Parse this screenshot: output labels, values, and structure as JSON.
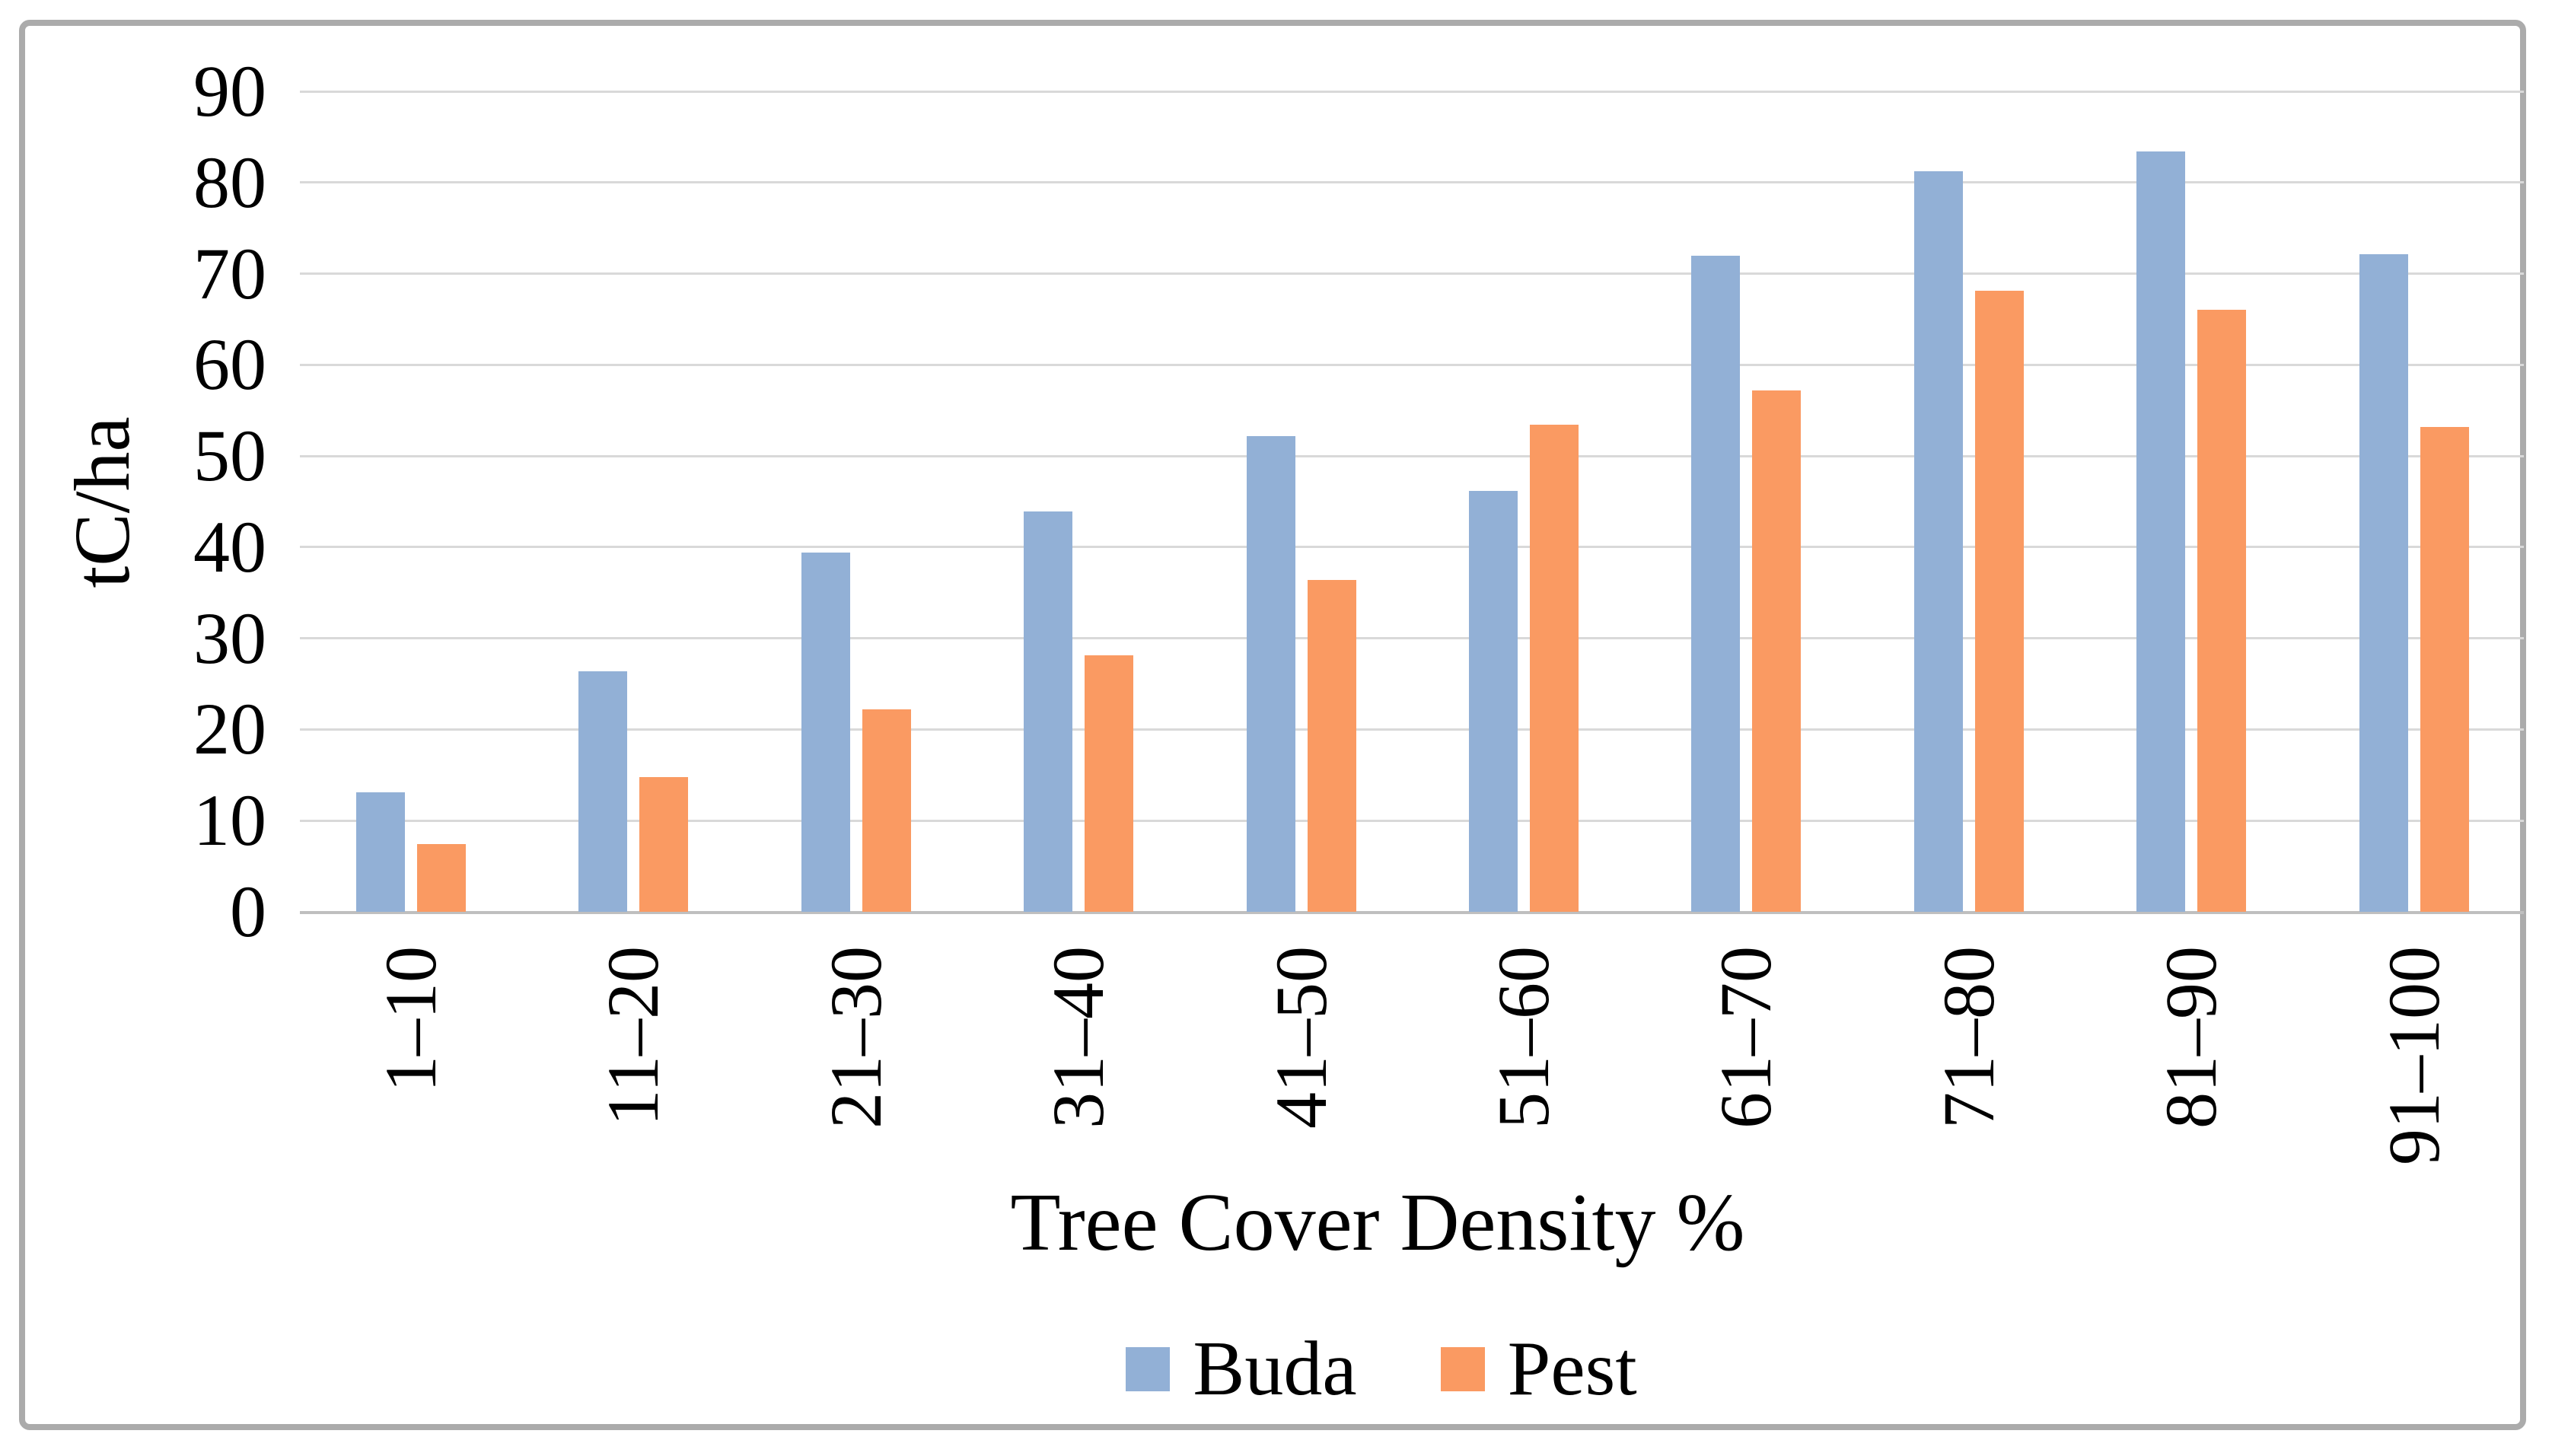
{
  "figure": {
    "background_color": "#ffffff",
    "border_color": "#ababab"
  },
  "chart_data": {
    "type": "bar",
    "title": "",
    "categories": [
      "1–10",
      "11–20",
      "21–30",
      "31–40",
      "41–50",
      "51–60",
      "61–70",
      "71–80",
      "81–90",
      "91–100"
    ],
    "series": [
      {
        "name": "Buda",
        "color": "#92B0D6",
        "values": [
          13.1,
          26.4,
          39.4,
          43.9,
          52.2,
          46.2,
          72.0,
          81.2,
          83.4,
          72.1
        ]
      },
      {
        "name": "Pest",
        "color": "#FA9A62",
        "values": [
          7.4,
          14.8,
          22.2,
          28.1,
          36.4,
          53.4,
          57.2,
          68.1,
          66.0,
          53.2
        ]
      }
    ],
    "xlabel": "Tree Cover Density %",
    "ylabel": "tC/ha",
    "ylim": [
      0,
      90
    ],
    "yticks": [
      0,
      10,
      20,
      30,
      40,
      50,
      60,
      70,
      80,
      90
    ],
    "grid": true,
    "gridline_color": "#d9d9d9",
    "axis_line_color": "#bfbfbf",
    "legend_position": "bottom"
  }
}
